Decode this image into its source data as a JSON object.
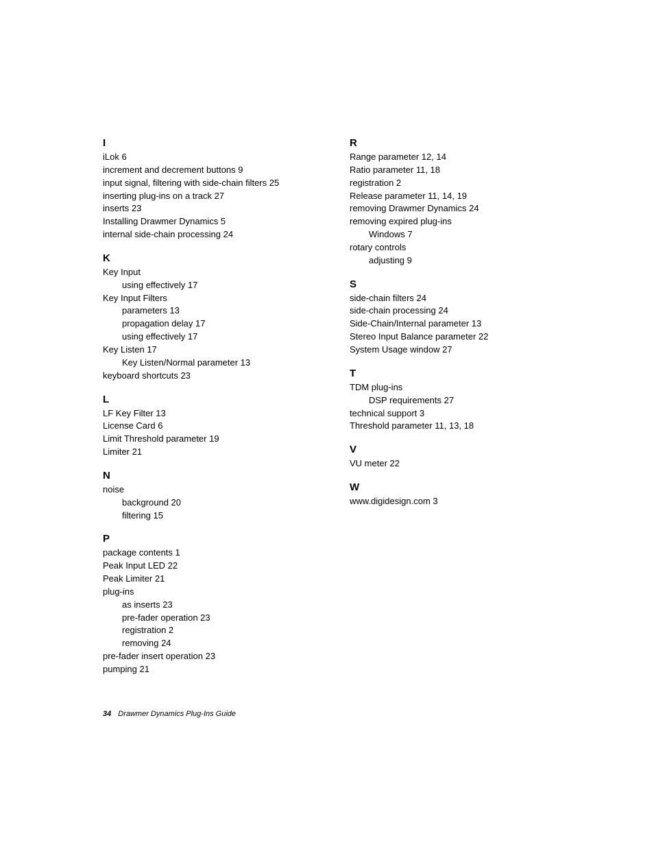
{
  "left": [
    {
      "letter": "I",
      "entries": [
        {
          "t": "iLok 6"
        },
        {
          "t": "increment and decrement buttons 9"
        },
        {
          "t": "input signal, filtering with side-chain filters 25"
        },
        {
          "t": "inserting plug-ins on a track 27"
        },
        {
          "t": "inserts 23"
        },
        {
          "t": "Installing Drawmer Dynamics 5"
        },
        {
          "t": "internal side-chain processing 24"
        }
      ]
    },
    {
      "letter": "K",
      "entries": [
        {
          "t": "Key Input"
        },
        {
          "t": "using effectively 17",
          "sub": true
        },
        {
          "t": "Key Input Filters"
        },
        {
          "t": "parameters 13",
          "sub": true
        },
        {
          "t": "propagation delay 17",
          "sub": true
        },
        {
          "t": "using effectively 17",
          "sub": true
        },
        {
          "t": "Key Listen 17"
        },
        {
          "t": "Key Listen/Normal parameter 13",
          "sub": true
        },
        {
          "t": "keyboard shortcuts 23"
        }
      ]
    },
    {
      "letter": "L",
      "entries": [
        {
          "t": "LF Key Filter 13"
        },
        {
          "t": "License Card 6"
        },
        {
          "t": "Limit Threshold parameter 19"
        },
        {
          "t": "Limiter 21"
        }
      ]
    },
    {
      "letter": "N",
      "entries": [
        {
          "t": "noise"
        },
        {
          "t": "background 20",
          "sub": true
        },
        {
          "t": "filtering 15",
          "sub": true
        }
      ]
    },
    {
      "letter": "P",
      "entries": [
        {
          "t": "package contents 1"
        },
        {
          "t": "Peak Input LED 22"
        },
        {
          "t": "Peak Limiter 21"
        },
        {
          "t": "plug-ins"
        },
        {
          "t": "as inserts 23",
          "sub": true
        },
        {
          "t": "pre-fader operation 23",
          "sub": true
        },
        {
          "t": "registration 2",
          "sub": true
        },
        {
          "t": "removing 24",
          "sub": true
        },
        {
          "t": "pre-fader insert operation 23"
        },
        {
          "t": "pumping 21"
        }
      ]
    }
  ],
  "right": [
    {
      "letter": "R",
      "entries": [
        {
          "t": "Range parameter 12, 14"
        },
        {
          "t": "Ratio parameter 11, 18"
        },
        {
          "t": "registration 2"
        },
        {
          "t": "Release parameter 11, 14, 19"
        },
        {
          "t": "removing Drawmer Dynamics 24"
        },
        {
          "t": "removing expired plug-ins"
        },
        {
          "t": "Windows 7",
          "sub": true
        },
        {
          "t": "rotary controls"
        },
        {
          "t": "adjusting 9",
          "sub": true
        }
      ]
    },
    {
      "letter": "S",
      "entries": [
        {
          "t": "side-chain filters 24"
        },
        {
          "t": "side-chain processing 24"
        },
        {
          "t": "Side-Chain/Internal parameter 13"
        },
        {
          "t": "Stereo Input Balance parameter 22"
        },
        {
          "t": "System Usage window 27"
        }
      ]
    },
    {
      "letter": "T",
      "entries": [
        {
          "t": "TDM plug-ins"
        },
        {
          "t": "DSP requirements 27",
          "sub": true
        },
        {
          "t": "technical support 3"
        },
        {
          "t": "Threshold parameter 11, 13, 18"
        }
      ]
    },
    {
      "letter": "V",
      "entries": [
        {
          "t": "VU meter 22"
        }
      ]
    },
    {
      "letter": "W",
      "entries": [
        {
          "t": "www.digidesign.com 3"
        }
      ]
    }
  ],
  "footer": {
    "page": "34",
    "title": "Drawmer Dynamics Plug-Ins Guide"
  }
}
